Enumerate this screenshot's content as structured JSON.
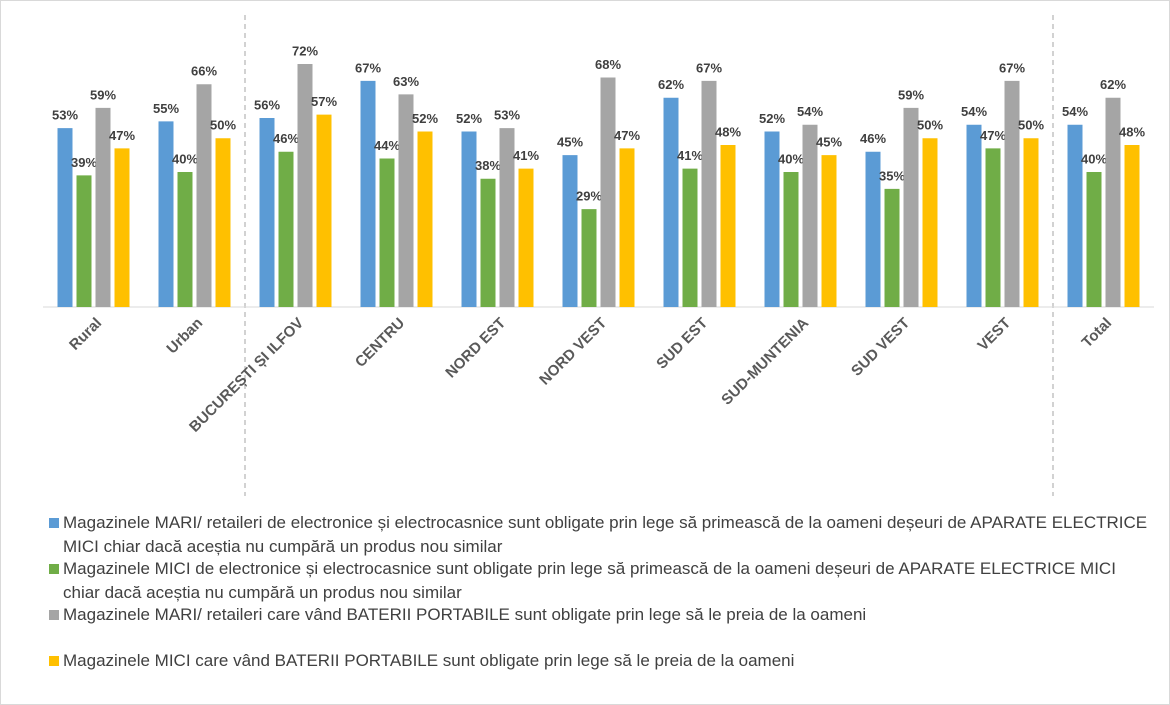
{
  "chart_data": {
    "type": "bar",
    "categories": [
      "Rural",
      "Urban",
      "BUCUREȘTI ȘI ILFOV",
      "CENTRU",
      "NORD EST",
      "NORD VEST",
      "SUD EST",
      "SUD-MUNTENIA",
      "SUD VEST",
      "VEST",
      "Total"
    ],
    "series": [
      {
        "name": "Magazinele MARI/ retaileri de electronice și electrocasnice sunt obligate prin lege să primească de la oameni deșeuri de APARATE ELECTRICE MICI chiar dacă aceștia nu cumpără un produs nou similar",
        "color": "#5b9bd5",
        "values": [
          53,
          55,
          56,
          67,
          52,
          45,
          62,
          52,
          46,
          54,
          54
        ],
        "value_labels": [
          "53%",
          "55%",
          "56%",
          "67%",
          "52%",
          "45%",
          "62%",
          "52%",
          "46%",
          "54%",
          "54%"
        ]
      },
      {
        "name": "Magazinele MICI de electronice și electrocasnice sunt obligate prin lege să primească de la oameni deșeuri de APARATE ELECTRICE MICI chiar dacă aceștia nu cumpără un produs nou similar",
        "color": "#70ad47",
        "values": [
          39,
          40,
          46,
          44,
          38,
          29,
          41,
          40,
          35,
          47,
          40
        ],
        "value_labels": [
          "39%",
          "40%",
          "46%",
          "44%",
          "38%",
          "29%",
          "41%",
          "40%",
          "35%",
          "47%",
          "40%"
        ]
      },
      {
        "name": "Magazinele MARI/ retaileri care vând BATERII PORTABILE sunt obligate prin lege să le preia de la oameni",
        "color": "#a5a5a5",
        "values": [
          59,
          66,
          72,
          63,
          53,
          68,
          67,
          54,
          59,
          67,
          62
        ],
        "value_labels": [
          "59%",
          "66%",
          "72%",
          "63%",
          "53%",
          "68%",
          "67%",
          "54%",
          "59%",
          "67%",
          "62%"
        ]
      },
      {
        "name": "Magazinele MICI care vând BATERII PORTABILE sunt obligate prin lege să le preia de la oameni",
        "color": "#ffc000",
        "values": [
          47,
          50,
          57,
          52,
          41,
          47,
          48,
          45,
          50,
          50,
          48
        ],
        "value_labels": [
          "47%",
          "50%",
          "57%",
          "52%",
          "41%",
          "47%",
          "48%",
          "45%",
          "50%",
          "50%",
          "48%"
        ]
      }
    ],
    "ylim": [
      0,
      80
    ]
  }
}
